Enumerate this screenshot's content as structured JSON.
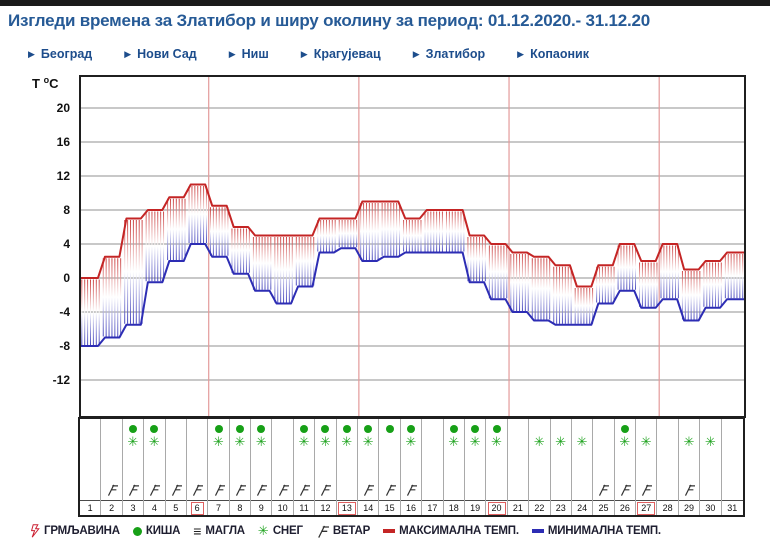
{
  "header": {
    "title": "Изгледи времена за Златибор и ширу околину за период: 01.12.2020.- 31.12.20"
  },
  "nav": {
    "items": [
      {
        "label": "Београд"
      },
      {
        "label": "Нови Сад"
      },
      {
        "label": "Ниш"
      },
      {
        "label": "Крагујевац"
      },
      {
        "label": "Златибор"
      },
      {
        "label": "Копаоник"
      }
    ]
  },
  "chart_data": {
    "type": "line",
    "title": "Temperature outlook meteogram",
    "axis_title": [
      "T",
      "o",
      "C"
    ],
    "yticks": [
      20,
      16,
      12,
      8,
      4,
      0,
      -4,
      -8,
      -12
    ],
    "ylim": [
      -16,
      24
    ],
    "x_range_days": [
      1,
      31
    ],
    "week_lines_after_day": [
      6,
      13,
      20,
      27
    ],
    "series": [
      {
        "name": "МАКСИМАЛНА ТЕМП.",
        "values": [
          0,
          2.5,
          7,
          8,
          9.5,
          11,
          8.5,
          6,
          5,
          5,
          5,
          7,
          7,
          9,
          9,
          7,
          8,
          8,
          5,
          4,
          3,
          2.5,
          1.5,
          -1,
          1.5,
          4,
          2,
          4,
          1,
          2,
          3
        ]
      },
      {
        "name": "МИНИМАЛНА ТЕМП.",
        "values": [
          -8,
          -7,
          -5.5,
          -0.5,
          2,
          4,
          2.5,
          0.5,
          -1.5,
          -3,
          -1,
          3,
          3.5,
          2,
          2.5,
          3,
          3,
          3,
          -0.5,
          -2.5,
          -4,
          -5,
          -5.5,
          -5.5,
          -3,
          -1.5,
          -3.5,
          -2.5,
          -5,
          -3.5,
          -2.5
        ]
      }
    ],
    "days": [
      {
        "day": 1,
        "rain": false,
        "snow": false,
        "wind": false,
        "sunday": false
      },
      {
        "day": 2,
        "rain": false,
        "snow": false,
        "wind": true,
        "sunday": false
      },
      {
        "day": 3,
        "rain": true,
        "snow": true,
        "wind": true,
        "sunday": false
      },
      {
        "day": 4,
        "rain": true,
        "snow": true,
        "wind": true,
        "sunday": false
      },
      {
        "day": 5,
        "rain": false,
        "snow": false,
        "wind": true,
        "sunday": false
      },
      {
        "day": 6,
        "rain": false,
        "snow": false,
        "wind": true,
        "sunday": true
      },
      {
        "day": 7,
        "rain": true,
        "snow": true,
        "wind": true,
        "sunday": false
      },
      {
        "day": 8,
        "rain": true,
        "snow": true,
        "wind": true,
        "sunday": false
      },
      {
        "day": 9,
        "rain": true,
        "snow": true,
        "wind": true,
        "sunday": false
      },
      {
        "day": 10,
        "rain": false,
        "snow": false,
        "wind": true,
        "sunday": false
      },
      {
        "day": 11,
        "rain": true,
        "snow": true,
        "wind": true,
        "sunday": false
      },
      {
        "day": 12,
        "rain": true,
        "snow": true,
        "wind": true,
        "sunday": false
      },
      {
        "day": 13,
        "rain": true,
        "snow": true,
        "wind": false,
        "sunday": true
      },
      {
        "day": 14,
        "rain": true,
        "snow": true,
        "wind": true,
        "sunday": false
      },
      {
        "day": 15,
        "rain": true,
        "snow": false,
        "wind": true,
        "sunday": false
      },
      {
        "day": 16,
        "rain": true,
        "snow": true,
        "wind": true,
        "sunday": false
      },
      {
        "day": 17,
        "rain": false,
        "snow": false,
        "wind": false,
        "sunday": false
      },
      {
        "day": 18,
        "rain": true,
        "snow": true,
        "wind": false,
        "sunday": false
      },
      {
        "day": 19,
        "rain": true,
        "snow": true,
        "wind": false,
        "sunday": false
      },
      {
        "day": 20,
        "rain": true,
        "snow": true,
        "wind": false,
        "sunday": true
      },
      {
        "day": 21,
        "rain": false,
        "snow": false,
        "wind": false,
        "sunday": false
      },
      {
        "day": 22,
        "rain": false,
        "snow": true,
        "wind": false,
        "sunday": false
      },
      {
        "day": 23,
        "rain": false,
        "snow": true,
        "wind": false,
        "sunday": false
      },
      {
        "day": 24,
        "rain": false,
        "snow": true,
        "wind": false,
        "sunday": false
      },
      {
        "day": 25,
        "rain": false,
        "snow": false,
        "wind": true,
        "sunday": false
      },
      {
        "day": 26,
        "rain": true,
        "snow": true,
        "wind": true,
        "sunday": false
      },
      {
        "day": 27,
        "rain": false,
        "snow": true,
        "wind": true,
        "sunday": true
      },
      {
        "day": 28,
        "rain": false,
        "snow": false,
        "wind": false,
        "sunday": false
      },
      {
        "day": 29,
        "rain": false,
        "snow": true,
        "wind": true,
        "sunday": false
      },
      {
        "day": 30,
        "rain": false,
        "snow": true,
        "wind": false,
        "sunday": false
      },
      {
        "day": 31,
        "rain": false,
        "snow": false,
        "wind": false,
        "sunday": false
      }
    ],
    "icons": {
      "rain": "green-circle",
      "snow": "green-asterisk",
      "wind": "wind-barb",
      "snow_glyph": "✳",
      "fog_glyph": "≡"
    },
    "colors": {
      "max_temp": "#c42525",
      "min_temp": "#2d2db4",
      "grid_h": "#909090",
      "grid_v": "#e39a9a",
      "border": "#1f1f1f",
      "rain_green": "#17a017",
      "snow_green": "#1fa31f",
      "sunday_box": "#e06060",
      "navy": "#265a96"
    },
    "legend_position": "bottom",
    "grid": true
  },
  "legend": {
    "items": [
      {
        "label": "ГРМЉАВИНА",
        "icon": "lightning-icon"
      },
      {
        "label": "КИША",
        "icon": "rain-icon"
      },
      {
        "label": "МАГЛА",
        "icon": "fog-icon",
        "glyph": "≡"
      },
      {
        "label": "СНЕГ",
        "icon": "snow-icon",
        "glyph": "✳"
      },
      {
        "label": "ВЕТАР",
        "icon": "wind-icon"
      },
      {
        "label": "МАКСИМАЛНА ТЕМП.",
        "icon": "max-temp-dash"
      },
      {
        "label": "МИНИМАЛНА ТЕМП.",
        "icon": "min-temp-dash"
      }
    ]
  }
}
